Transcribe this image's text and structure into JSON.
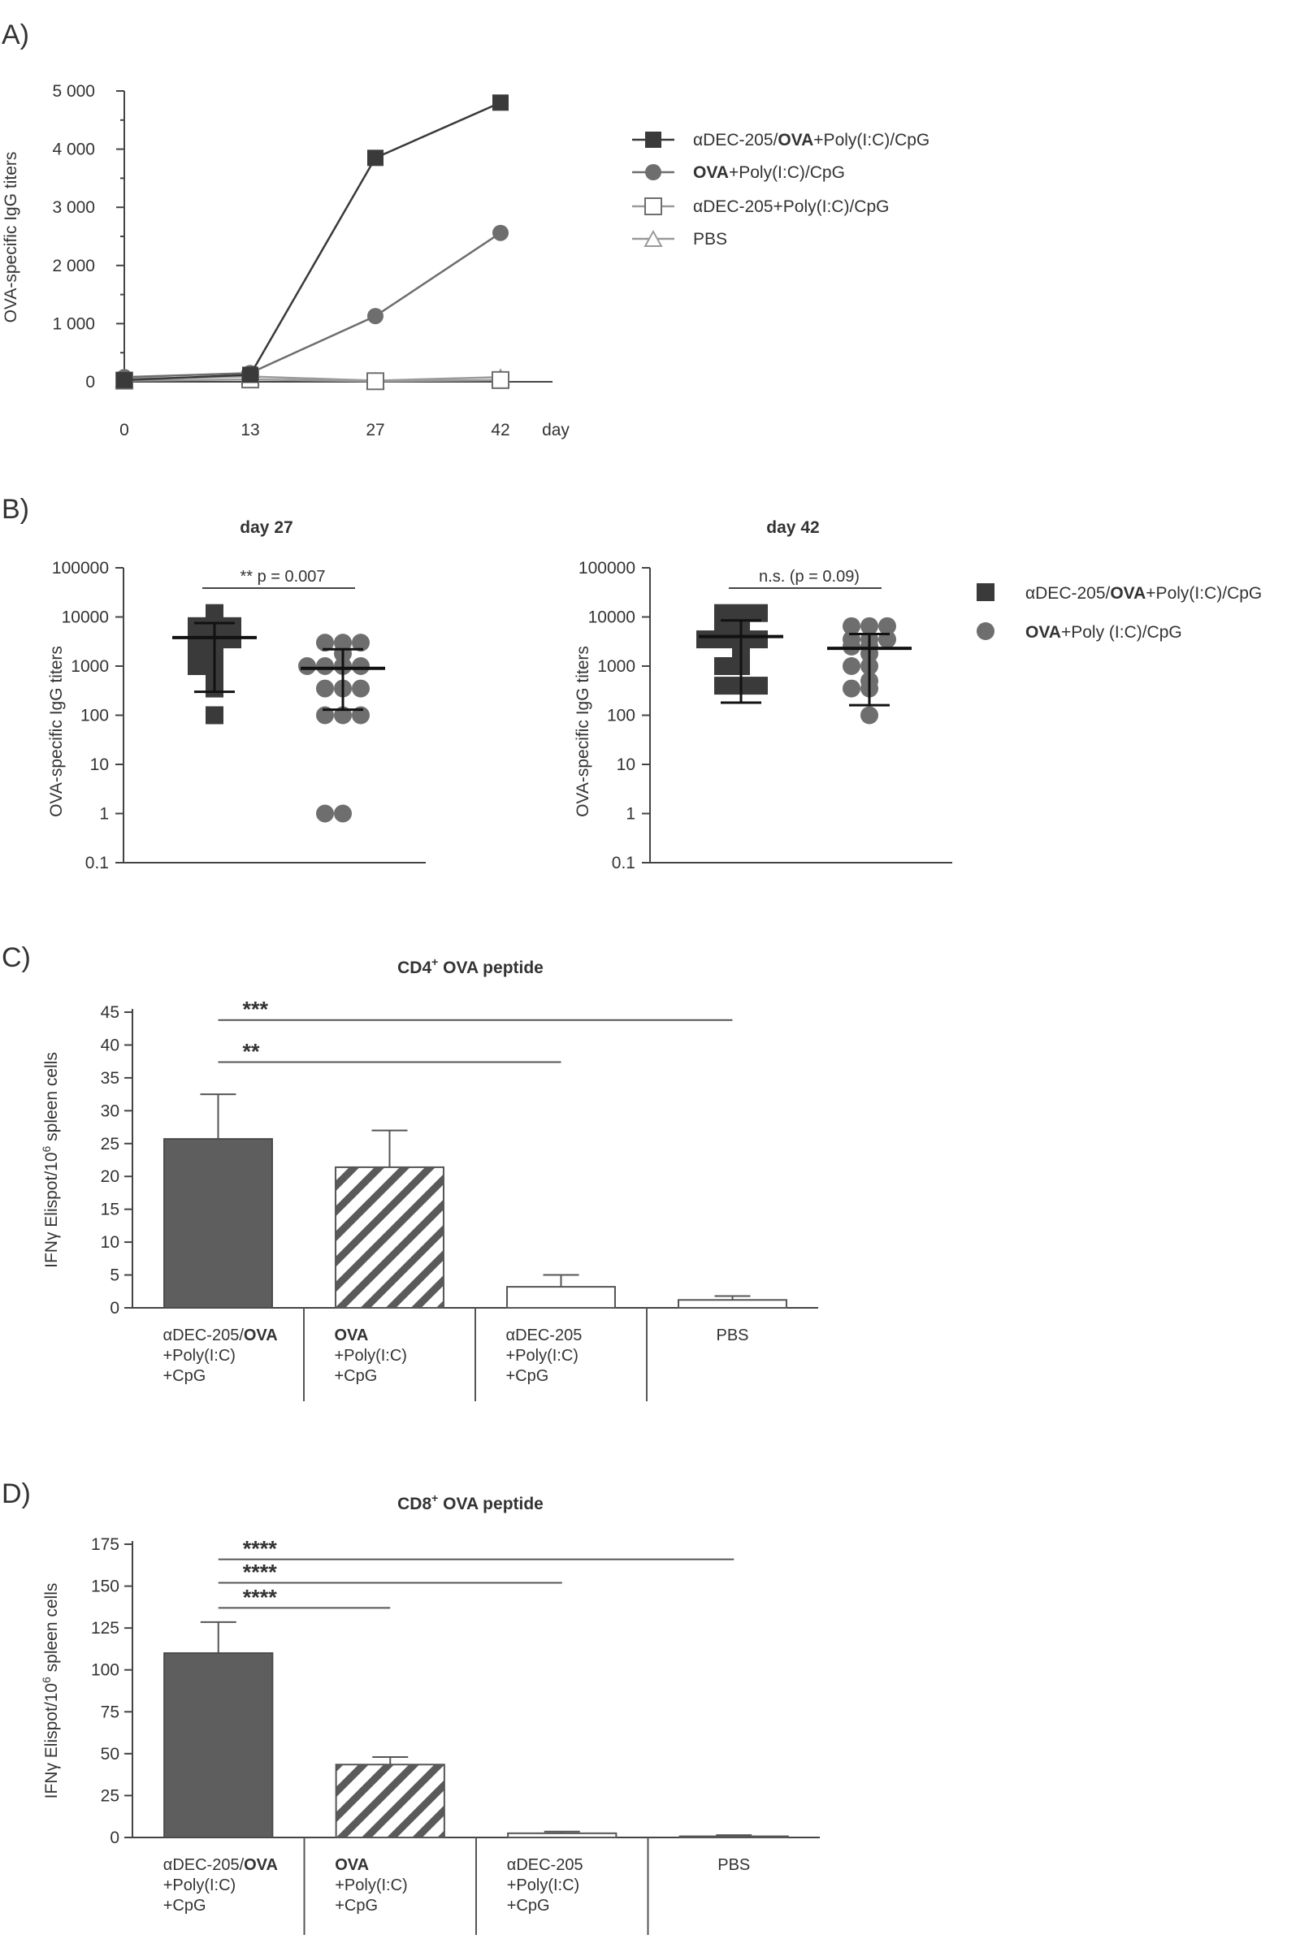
{
  "colors": {
    "dark": "#3a3a3a",
    "mid": "#6e6e6e",
    "bar_dark": "#5e5e5e",
    "axis": "#444444",
    "light": "#9a9a9a"
  },
  "chart_data": [
    {
      "id": "A",
      "panel": "A)",
      "type": "line",
      "x": [
        0,
        13,
        27,
        42
      ],
      "x_ticks": [
        "0",
        "13",
        "27",
        "42"
      ],
      "xlabel": "day",
      "ylabel": "OVA-specific IgG titers",
      "y_ticks": [
        "0",
        "1 000",
        "2 000",
        "3 000",
        "4 000",
        "5 000"
      ],
      "ylim": [
        0,
        5000
      ],
      "legend": [
        "αDEC-205/",
        "OVA",
        "+Poly(I:C)/CpG",
        "OVA",
        "+Poly(I:C)/CpG",
        "αDEC-205+Poly(I:C)/CpG",
        "PBS"
      ],
      "series": [
        {
          "name": "αDEC-205/OVA+Poly(I:C)/CpG",
          "marker": "filled-square",
          "values": [
            30,
            120,
            3850,
            4800
          ]
        },
        {
          "name": "OVA+Poly(I:C)/CpG",
          "marker": "filled-circle",
          "values": [
            80,
            150,
            1130,
            2560
          ]
        },
        {
          "name": "αDEC-205+Poly(I:C)/CpG",
          "marker": "open-square",
          "values": [
            20,
            40,
            10,
            30
          ]
        },
        {
          "name": "PBS",
          "marker": "open-triangle",
          "values": [
            50,
            90,
            20,
            80
          ]
        }
      ]
    },
    {
      "id": "B1",
      "panel": "B)",
      "type": "scatter",
      "title": "day 27",
      "ylabel": "OVA-specific IgG titers",
      "yscale": "log",
      "ylim": [
        0.1,
        100000
      ],
      "y_ticks": [
        "0.1",
        "1",
        "10",
        "100",
        "1000",
        "10000",
        "100000"
      ],
      "annotation": "** p = 0.007",
      "groups": [
        {
          "name": "αDEC-205/OVA+Poly(I:C)/CpG",
          "marker": "filled-square",
          "values": [
            12000,
            6500,
            6500,
            6500,
            3500,
            3500,
            3500,
            1800,
            1800,
            1000,
            1000,
            700,
            450,
            350,
            100
          ],
          "mean": 3800,
          "err_low": 300,
          "err_high": 7500
        },
        {
          "name": "OVA+Poly(I:C)/CpG",
          "marker": "filled-circle",
          "values": [
            3000,
            3000,
            3000,
            1800,
            1000,
            1000,
            1000,
            1000,
            350,
            350,
            350,
            100,
            100,
            100,
            1,
            1
          ],
          "mean": 900,
          "err_low": 130,
          "err_high": 2200
        }
      ]
    },
    {
      "id": "B2",
      "type": "scatter",
      "title": "day 42",
      "ylabel": "OVA-specific IgG titers",
      "yscale": "log",
      "ylim": [
        0.1,
        100000
      ],
      "y_ticks": [
        "0.1",
        "1",
        "10",
        "100",
        "1000",
        "10000",
        "100000"
      ],
      "annotation": "n.s. (p = 0.09)",
      "groups": [
        {
          "name": "αDEC-205/OVA+Poly(I:C)/CpG",
          "marker": "filled-square",
          "values": [
            12000,
            12000,
            12000,
            6500,
            6500,
            3500,
            3500,
            3500,
            3500,
            1800,
            1000,
            1000,
            400,
            400,
            400
          ],
          "mean": 4000,
          "err_low": 180,
          "err_high": 8500
        },
        {
          "name": "OVA+Poly (I:C)/CpG",
          "marker": "filled-circle",
          "values": [
            6500,
            6500,
            6500,
            3500,
            3500,
            3500,
            2500,
            2500,
            1800,
            1000,
            1000,
            500,
            350,
            350,
            100
          ],
          "mean": 2300,
          "err_low": 160,
          "err_high": 4500
        }
      ],
      "legend": [
        "αDEC-205/",
        "OVA",
        "+Poly(I:C)/CpG",
        "OVA",
        "+Poly (I:C)/CpG"
      ]
    },
    {
      "id": "C",
      "panel": "C)",
      "type": "bar",
      "title_prefix": "CD4",
      "title_sup": "+",
      "title_suffix": " OVA peptide",
      "ylabel_prefix": "IFNγ Elispot/10",
      "ylabel_sup": "6",
      "ylabel_suffix": " spleen cells",
      "ylim": [
        0,
        45
      ],
      "y_ticks": [
        "0",
        "5",
        "10",
        "15",
        "20",
        "25",
        "30",
        "35",
        "40",
        "45"
      ],
      "categories": [
        [
          "αDEC-205/",
          "OVA",
          "+Poly(I:C)",
          "+CpG"
        ],
        [
          "",
          "OVA",
          "+Poly(I:C)",
          "+CpG"
        ],
        [
          "αDEC-205",
          "",
          "+Poly(I:C)",
          "+CpG"
        ],
        [
          "PBS",
          "",
          "",
          ""
        ]
      ],
      "values": [
        25.7,
        21.4,
        3.2,
        1.2
      ],
      "errors": [
        6.8,
        5.6,
        1.8,
        0.6
      ],
      "styles": [
        "solid",
        "hatch",
        "open",
        "open"
      ],
      "significance": [
        {
          "label": "***",
          "from": 0,
          "to": 3,
          "y": 43.8
        },
        {
          "label": "**",
          "from": 0,
          "to": 2,
          "y": 37.4
        }
      ]
    },
    {
      "id": "D",
      "panel": "D)",
      "type": "bar",
      "title_prefix": "CD8",
      "title_sup": "+",
      "title_suffix": " OVA peptide",
      "ylabel_prefix": "IFNγ Elispot/10",
      "ylabel_sup": "6",
      "ylabel_suffix": " spleen cells",
      "ylim": [
        0,
        175
      ],
      "y_ticks": [
        "0",
        "25",
        "50",
        "75",
        "100",
        "125",
        "150",
        "175"
      ],
      "categories": [
        [
          "αDEC-205/",
          "OVA",
          "+Poly(I:C)",
          "+CpG"
        ],
        [
          "",
          "OVA",
          "+Poly(I:C)",
          "+CpG"
        ],
        [
          "αDEC-205",
          "",
          "+Poly(I:C)",
          "+CpG"
        ],
        [
          "PBS",
          "",
          "",
          ""
        ]
      ],
      "values": [
        110,
        43.5,
        2.5,
        0.7
      ],
      "errors": [
        18.5,
        4.5,
        1.0,
        0.7
      ],
      "styles": [
        "solid",
        "hatch",
        "open",
        "open"
      ],
      "significance": [
        {
          "label": "****",
          "from": 0,
          "to": 3,
          "y": 166
        },
        {
          "label": "****",
          "from": 0,
          "to": 2,
          "y": 152
        },
        {
          "label": "****",
          "from": 0,
          "to": 1,
          "y": 137
        }
      ]
    }
  ]
}
